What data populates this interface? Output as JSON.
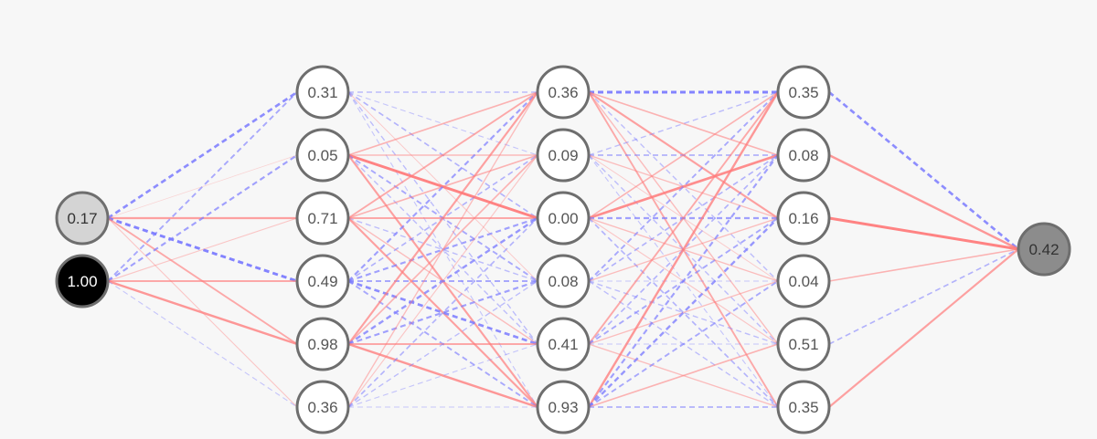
{
  "colors": {
    "positive_weight": "#ff7a7a",
    "negative_weight": "#7a7aff",
    "background": "#f7f7f7",
    "node_stroke": "#6e6e6e"
  },
  "layers": [
    {
      "name": "input",
      "nodes": [
        {
          "label": "0.17",
          "fill": "#d4d4d4"
        },
        {
          "label": "1.00",
          "fill": "#000000"
        }
      ]
    },
    {
      "name": "hidden-1",
      "nodes": [
        {
          "label": "0.31"
        },
        {
          "label": "0.05"
        },
        {
          "label": "0.71"
        },
        {
          "label": "0.49"
        },
        {
          "label": "0.98"
        },
        {
          "label": "0.36"
        }
      ]
    },
    {
      "name": "hidden-2",
      "nodes": [
        {
          "label": "0.36"
        },
        {
          "label": "0.09"
        },
        {
          "label": "0.00"
        },
        {
          "label": "0.08"
        },
        {
          "label": "0.41"
        },
        {
          "label": "0.93"
        }
      ]
    },
    {
      "name": "hidden-3",
      "nodes": [
        {
          "label": "0.35"
        },
        {
          "label": "0.08"
        },
        {
          "label": "0.16"
        },
        {
          "label": "0.04"
        },
        {
          "label": "0.51"
        },
        {
          "label": "0.35"
        }
      ]
    },
    {
      "name": "output",
      "nodes": [
        {
          "label": "0.42",
          "fill": "#8c8c8c"
        }
      ]
    }
  ],
  "weights": [
    [
      [
        -0.8,
        0.05,
        0.6,
        -0.9,
        0.5,
        0.2
      ],
      [
        -0.5,
        -0.6,
        0.2,
        0.5,
        0.7,
        -0.2
      ]
    ],
    [
      [
        -0.3,
        -0.2,
        -0.4,
        0.15,
        -0.3,
        -0.2
      ],
      [
        0.4,
        0.3,
        0.9,
        -0.5,
        -0.3,
        0.6
      ],
      [
        0.5,
        0.4,
        0.5,
        -0.3,
        0.3,
        0.6
      ],
      [
        -0.6,
        -0.4,
        -0.6,
        -0.5,
        -0.8,
        -0.5
      ],
      [
        0.6,
        0.4,
        -0.7,
        -0.6,
        0.5,
        0.7
      ],
      [
        0.3,
        0.2,
        -0.4,
        -0.3,
        -0.2,
        -0.2
      ]
    ],
    [
      [
        -0.9,
        0.4,
        0.6,
        -0.3,
        0.3,
        0.5
      ],
      [
        -0.3,
        -0.4,
        0.3,
        0.15,
        -0.3,
        -0.2
      ],
      [
        0.4,
        0.8,
        -0.6,
        0.3,
        0.2,
        -0.4
      ],
      [
        -0.5,
        -0.4,
        0.3,
        -0.2,
        -0.3,
        -0.3
      ],
      [
        0.5,
        -0.4,
        -0.5,
        0.3,
        -0.2,
        0.3
      ],
      [
        0.7,
        -0.6,
        -0.7,
        -0.5,
        0.4,
        -0.4
      ]
    ],
    [
      [
        -0.8
      ],
      [
        0.7
      ],
      [
        0.9
      ],
      [
        0.4
      ],
      [
        -0.4
      ],
      [
        0.6
      ]
    ]
  ]
}
